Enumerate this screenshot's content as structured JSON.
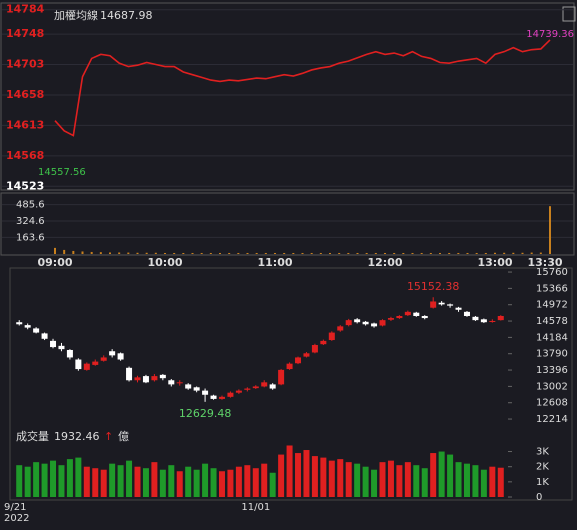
{
  "chart_data": [
    {
      "type": "line",
      "title": "加權均線",
      "current": 14687.98,
      "low_label": 14557.56,
      "color": "#e02020",
      "categories": [
        "09:00",
        null,
        null,
        null,
        null,
        null,
        null,
        null,
        null,
        null,
        null,
        null,
        "10:00",
        null,
        null,
        null,
        null,
        null,
        null,
        null,
        null,
        null,
        null,
        null,
        "11:00",
        null,
        null,
        null,
        null,
        null,
        null,
        null,
        null,
        null,
        null,
        null,
        "12:00",
        null,
        null,
        null,
        null,
        null,
        null,
        null,
        null,
        null,
        null,
        null,
        "13:00",
        null,
        null,
        null,
        null,
        null,
        "13:30"
      ],
      "values": [
        14620,
        14605,
        14598,
        14685,
        14712,
        14718,
        14716,
        14705,
        14700,
        14702,
        14706,
        14703,
        14700,
        14700,
        14692,
        14688,
        14684,
        14680,
        14678,
        14680,
        14679,
        14681,
        14683,
        14682,
        14685,
        14688,
        14686,
        14690,
        14695,
        14698,
        14700,
        14705,
        14708,
        14713,
        14718,
        14722,
        14718,
        14720,
        14716,
        14722,
        14715,
        14712,
        14706,
        14705,
        14708,
        14710,
        14712,
        14705,
        14718,
        14722,
        14728,
        14722,
        14725,
        14726,
        14739.36
      ],
      "ylim": [
        14519,
        14791
      ],
      "yticks": [
        14784,
        14748,
        14703,
        14658,
        14613,
        14568,
        14523
      ]
    },
    {
      "type": "bar",
      "color": "#c8801e",
      "values": [
        60,
        40,
        30,
        25,
        20,
        18,
        15,
        15,
        14,
        12,
        12,
        12,
        10,
        10,
        10,
        10,
        10,
        10,
        10,
        10,
        10,
        10,
        10,
        10,
        10,
        10,
        10,
        10,
        10,
        10,
        10,
        10,
        10,
        10,
        10,
        10,
        10,
        10,
        10,
        10,
        10,
        10,
        10,
        10,
        10,
        10,
        10,
        10,
        12,
        12,
        12,
        12,
        14,
        14,
        470
      ],
      "ylim": [
        0,
        570
      ],
      "yticks": [
        485.6,
        324.6,
        163.6
      ]
    },
    {
      "type": "candlestick",
      "up_color": "#e02020",
      "down_color": "#ffffff",
      "year": "2022",
      "categories": [
        "9/21",
        null,
        null,
        null,
        null,
        null,
        null,
        null,
        null,
        null,
        null,
        null,
        null,
        null,
        null,
        null,
        null,
        null,
        null,
        null,
        null,
        null,
        null,
        null,
        null,
        null,
        null,
        null,
        "11/01",
        null,
        null,
        null,
        null,
        null,
        null,
        null,
        null,
        null,
        null,
        null,
        null,
        null,
        null,
        null,
        null,
        null,
        null,
        null,
        null,
        null,
        null,
        null,
        null,
        null,
        null,
        null,
        null,
        null
      ],
      "open": [
        14550,
        14480,
        14400,
        14280,
        14100,
        13980,
        13880,
        13650,
        13400,
        13520,
        13620,
        13850,
        13800,
        13450,
        13150,
        13250,
        13150,
        13280,
        13150,
        13080,
        13050,
        12980,
        12900,
        12780,
        12700,
        12750,
        12850,
        12920,
        12960,
        13000,
        13050,
        13050,
        13420,
        13560,
        13720,
        13820,
        14020,
        14120,
        14350,
        14480,
        14620,
        14560,
        14520,
        14470,
        14610,
        14650,
        14720,
        14780,
        14700,
        14900,
        15020,
        14980,
        14900,
        14800,
        14680,
        14620,
        14560,
        14600
      ],
      "high": [
        14600,
        14520,
        14430,
        14300,
        14150,
        14050,
        13900,
        13680,
        13580,
        13650,
        13750,
        13900,
        13820,
        13480,
        13260,
        13280,
        13300,
        13300,
        13180,
        13150,
        13080,
        13000,
        12950,
        12800,
        12780,
        12880,
        12930,
        12980,
        13030,
        13150,
        13080,
        13420,
        13580,
        13720,
        13830,
        14030,
        14130,
        14330,
        14480,
        14630,
        14650,
        14580,
        14540,
        14620,
        14680,
        14720,
        14830,
        14800,
        14720,
        15152.38,
        15060,
        15000,
        14920,
        14820,
        14700,
        14640,
        14620,
        14720
      ],
      "low": [
        14470,
        14380,
        14280,
        14120,
        13920,
        13850,
        13650,
        13380,
        13380,
        13500,
        13600,
        13700,
        13620,
        13120,
        13100,
        13080,
        13120,
        13150,
        13000,
        13020,
        12920,
        12860,
        12629.48,
        12680,
        12680,
        12730,
        12820,
        12880,
        12940,
        12980,
        12920,
        13030,
        13400,
        13540,
        13700,
        13800,
        14000,
        14100,
        14320,
        14450,
        14520,
        14470,
        14420,
        14450,
        14580,
        14630,
        14700,
        14680,
        14620,
        14880,
        14950,
        14900,
        14800,
        14680,
        14580,
        14530,
        14540,
        14590
      ],
      "close": [
        14500,
        14420,
        14300,
        14150,
        13950,
        13900,
        13700,
        13420,
        13550,
        13600,
        13700,
        13750,
        13650,
        13150,
        13220,
        13100,
        13250,
        13200,
        13050,
        13100,
        12950,
        12900,
        12800,
        12700,
        12750,
        12850,
        12900,
        12950,
        13000,
        13100,
        12950,
        13400,
        13550,
        13700,
        13800,
        14000,
        14100,
        14300,
        14450,
        14600,
        14550,
        14500,
        14450,
        14600,
        14650,
        14700,
        14800,
        14700,
        14650,
        15050,
        14980,
        14950,
        14850,
        14700,
        14600,
        14550,
        14580,
        14700
      ],
      "ylim": [
        11950,
        15930
      ],
      "yticks": [
        15760,
        15366,
        14972,
        14578,
        14184,
        13790,
        13396,
        13002,
        12608,
        12214
      ]
    },
    {
      "type": "volume",
      "title": "成交量",
      "arrow": "↑",
      "unit": "億",
      "up_color": "#e02020",
      "down_color": "#1f9a2a",
      "values": [
        2100,
        2000,
        2300,
        2200,
        2400,
        2100,
        2500,
        2600,
        2000,
        1900,
        1800,
        2200,
        2100,
        2400,
        2000,
        1900,
        2300,
        1800,
        2100,
        1700,
        2000,
        1800,
        2200,
        1900,
        1700,
        1800,
        2000,
        2100,
        1900,
        2200,
        1600,
        2800,
        3400,
        2900,
        3100,
        2700,
        2600,
        2400,
        2500,
        2300,
        2200,
        2000,
        1800,
        2300,
        2400,
        2100,
        2300,
        2100,
        1900,
        2900,
        3000,
        2800,
        2300,
        2200,
        2100,
        1800,
        2000,
        1932.46
      ],
      "ylim": [
        0,
        3300
      ],
      "yticks": [
        {
          "value": 3000,
          "label": "3K"
        },
        {
          "value": 2000,
          "label": "2K"
        },
        {
          "value": 1000,
          "label": "1K"
        },
        0
      ]
    }
  ]
}
